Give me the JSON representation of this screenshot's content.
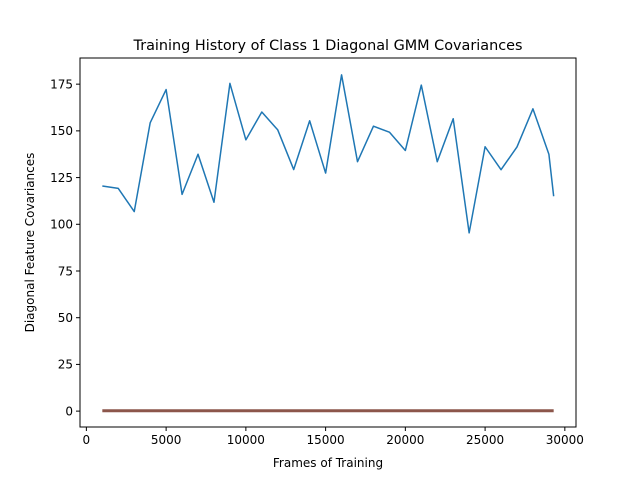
{
  "chart_data": {
    "type": "line",
    "title": "Training History of Class 1 Diagonal GMM Covariances",
    "xlabel": "Frames of Training",
    "ylabel": "Diagonal Feature Covariances",
    "xlim": [
      -400,
      30700
    ],
    "ylim": [
      -8.5,
      189
    ],
    "xticks": [
      0,
      5000,
      10000,
      15000,
      20000,
      25000,
      30000
    ],
    "xtick_labels": [
      "0",
      "5000",
      "10000",
      "15000",
      "20000",
      "25000",
      "30000"
    ],
    "yticks": [
      0,
      25,
      50,
      75,
      100,
      125,
      150,
      175
    ],
    "ytick_labels": [
      "0",
      "25",
      "50",
      "75",
      "100",
      "125",
      "150",
      "175"
    ],
    "grid": false,
    "legend": "none",
    "series": [
      {
        "color": "#1f77b4",
        "x": [
          1000,
          2000,
          3000,
          4000,
          5000,
          6000,
          7000,
          8000,
          9000,
          10000,
          11000,
          12000,
          13000,
          14000,
          15000,
          16000,
          17000,
          18000,
          19000,
          20000,
          21000,
          22000,
          23000,
          24000,
          25000,
          26000,
          27000,
          28000,
          29000,
          29300
        ],
        "y": [
          120.5,
          119.2,
          106.8,
          154.3,
          172.1,
          116.0,
          137.5,
          111.8,
          175.4,
          145.2,
          160.1,
          150.5,
          129.3,
          155.4,
          127.4,
          180.0,
          133.5,
          152.5,
          149.3,
          139.5,
          174.5,
          133.5,
          156.5,
          95.4,
          141.5,
          129.2,
          141.4,
          161.8,
          137.5,
          115.0
        ]
      },
      {
        "color": "#8c564b",
        "x": [
          1000,
          29300
        ],
        "y": [
          0.2,
          0.2
        ]
      }
    ]
  }
}
